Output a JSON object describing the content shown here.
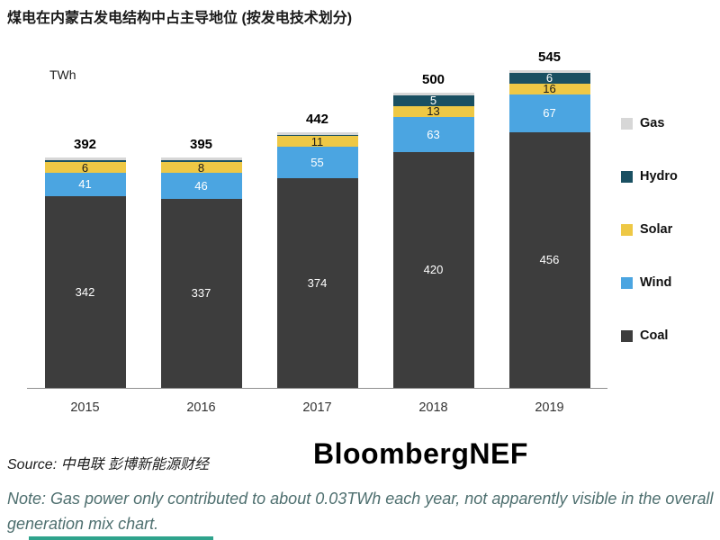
{
  "header": {
    "title": "煤电在内蒙古发电结构中占主导地位 (按发电技术划分)"
  },
  "chart_data": {
    "type": "bar",
    "stacked": true,
    "title": "煤电在内蒙古发电结构中占主导地位 (按发电技术划分)",
    "unit_label": "TWh",
    "categories": [
      "2015",
      "2016",
      "2017",
      "2018",
      "2019"
    ],
    "totals": [
      "392",
      "395",
      "442",
      "500",
      "545"
    ],
    "ylim": [
      0,
      560
    ],
    "legend_position": "right",
    "series": [
      {
        "name": "Coal",
        "color": "#3d3d3d",
        "label_color": "#ffffff",
        "values": [
          342,
          337,
          374,
          420,
          456
        ],
        "labels": [
          "342",
          "337",
          "374",
          "420",
          "456"
        ]
      },
      {
        "name": "Wind",
        "color": "#4ba5e1",
        "label_color": "#ffffff",
        "values": [
          41,
          46,
          55,
          63,
          67
        ],
        "labels": [
          "41",
          "46",
          "55",
          "63",
          "67"
        ]
      },
      {
        "name": "Solar",
        "color": "#eec845",
        "label_color": "#1a1a1a",
        "values": [
          6,
          8,
          11,
          13,
          16
        ],
        "labels": [
          "6",
          "8",
          "11",
          "13",
          "16"
        ]
      },
      {
        "name": "Hydro",
        "color": "#1a5062",
        "label_color": "#ffffff",
        "values": [
          3,
          4,
          2,
          5,
          6
        ],
        "labels": [
          "",
          "",
          "",
          "5",
          "6"
        ]
      },
      {
        "name": "Gas",
        "color": "#d7d7d7",
        "label_color": "#1a1a1a",
        "values": [
          0.03,
          0.03,
          0.03,
          0.03,
          0.03
        ],
        "labels": [
          "",
          "",
          "",
          "",
          ""
        ]
      }
    ]
  },
  "legend": {
    "items": [
      {
        "label": "Gas",
        "color": "#d7d7d7"
      },
      {
        "label": "Hydro",
        "color": "#1a5062"
      },
      {
        "label": "Solar",
        "color": "#eec845"
      },
      {
        "label": "Wind",
        "color": "#4ba5e1"
      },
      {
        "label": "Coal",
        "color": "#3d3d3d"
      }
    ]
  },
  "footer": {
    "source_label": "Source:",
    "source_text": "中电联 彭博新能源财经",
    "brand": "BloombergNEF",
    "note": "Note: Gas power only contributed to about 0.03TWh each year, not apparently visible in the overall generation mix chart."
  },
  "colors": {
    "coal": "#3d3d3d",
    "wind": "#4ba5e1",
    "solar": "#eec845",
    "hydro": "#1a5062",
    "gas": "#d7d7d7",
    "note_text": "#4e6f6f",
    "bottom_accent": "#2fa38c"
  }
}
